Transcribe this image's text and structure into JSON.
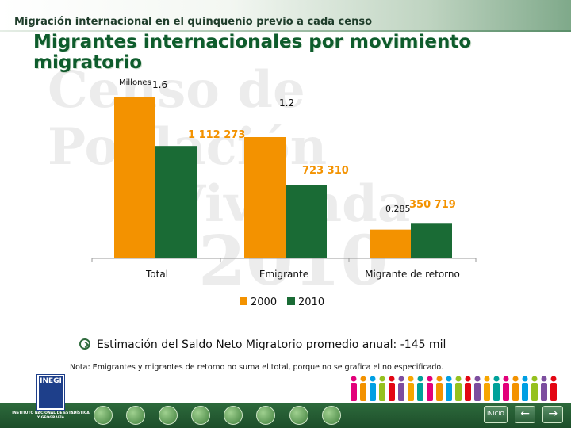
{
  "header": {
    "section_title": "Migración internacional en el quinquenio previo a cada censo",
    "main_title": "Migrantes internacionales por movimiento migratorio"
  },
  "watermark": {
    "line1": "Censo de Población",
    "line2": "y Vivienda",
    "line3": "2010"
  },
  "chart_data": {
    "type": "bar",
    "title": "Migrantes internacionales por movimiento migratorio",
    "ylabel": "Millones",
    "categories": [
      "Total",
      "Emigrante",
      "Migrante de retorno"
    ],
    "series": [
      {
        "name": "2000",
        "color": "#f39200",
        "values": [
          1.6,
          1.2,
          0.285
        ],
        "labels": [
          "1.6",
          "1.2",
          "0.285"
        ]
      },
      {
        "name": "2010",
        "color": "#1a6b35",
        "values": [
          1.112273,
          0.72331,
          0.350719
        ],
        "labels": [
          "1 112 273",
          "723 310",
          "350 719"
        ]
      }
    ],
    "ylim": [
      0,
      1.6
    ],
    "grid": false,
    "legend_position": "bottom"
  },
  "estimate": {
    "text": "Estimación del Saldo Neto Migratorio promedio anual:  -145 mil"
  },
  "footnote": "Nota: Emigrantes y migrantes de retorno no suma el total, porque no se grafica el no especificado.",
  "footer": {
    "logo_text": "INEGI",
    "logo_name": "INSTITUTO NACIONAL DE ESTADÍSTICA Y GEOGRAFÍA",
    "icons": [
      "people-icon",
      "globe-icon",
      "family-icon",
      "person-icon",
      "home-icon",
      "map-icon",
      "building-icon",
      "document-icon"
    ],
    "nav": {
      "home_label": "INICIO",
      "back_glyph": "←",
      "forward_glyph": "→"
    }
  },
  "colors": {
    "orange_2000": "#f39200",
    "green_2010": "#1a6b35",
    "title_green": "#0e5c2c"
  }
}
